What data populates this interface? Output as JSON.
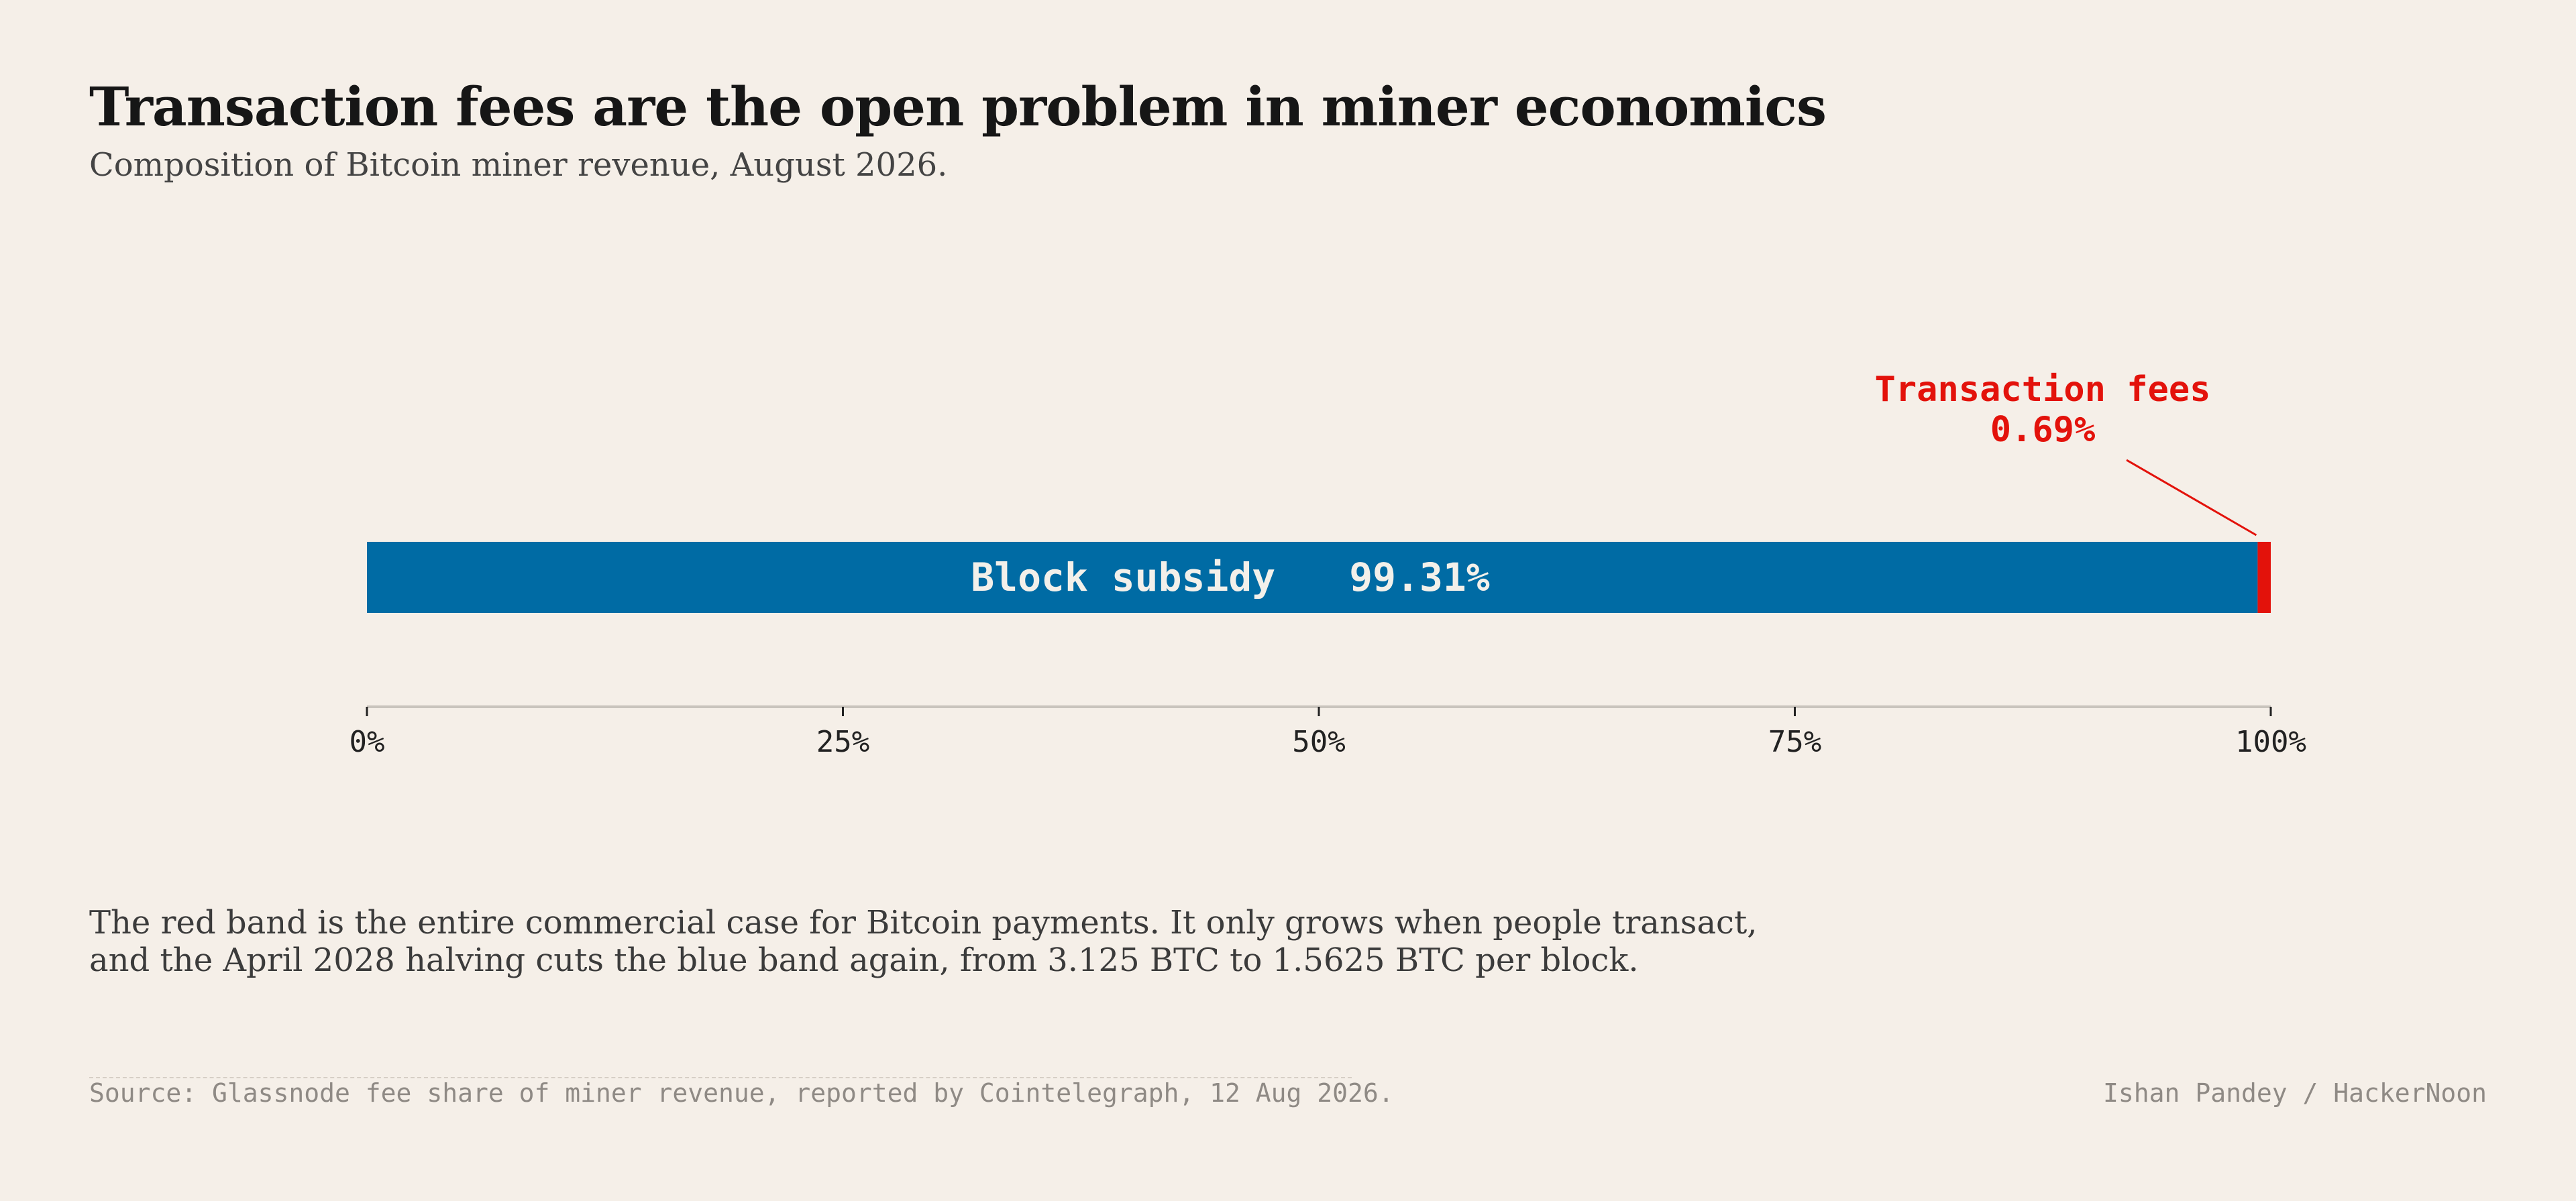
{
  "title": "Transaction fees are the open problem in miner economics",
  "subtitle": "Composition of Bitcoin miner revenue, August 2026.",
  "chart_data": {
    "type": "bar",
    "orientation": "horizontal",
    "stacked": true,
    "categories": [
      ""
    ],
    "series": [
      {
        "name": "Block subsidy",
        "values": [
          99.31
        ],
        "label": "99.31%",
        "color": "#006ba4"
      },
      {
        "name": "Transaction fees",
        "values": [
          0.69
        ],
        "label": "0.69%",
        "color": "#e3120b"
      }
    ],
    "xlim": [
      0,
      100
    ],
    "xticks": [
      0,
      25,
      50,
      75,
      100
    ],
    "xtick_labels": [
      "0%",
      "25%",
      "50%",
      "75%",
      "100%"
    ],
    "xlabel": "",
    "ylabel": "",
    "grid": false,
    "legend": "none",
    "axis_color": "#c9c4bd",
    "tick_text_color": "#222222"
  },
  "note": "The red band is the entire commercial case for Bitcoin payments. It only grows when people transact, and the April 2028 halving cuts the blue band again, from 3.125 BTC to 1.5625 BTC per block.",
  "source": "Source: Glassnode fee share of miner revenue, reported by Cointelegraph, 12 Aug 2026.",
  "credit": "Ishan Pandey / HackerNoon"
}
